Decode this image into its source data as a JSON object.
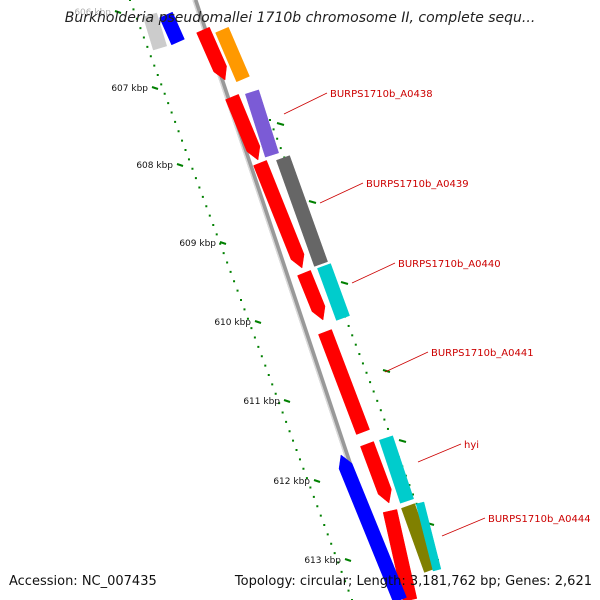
{
  "header": {
    "title": "Burkholderia pseudomallei 1710b chromosome II, complete sequ..."
  },
  "footer": {
    "accession": "Accession: NC_007435",
    "summary": "Topology: circular; Length: 3,181,762 bp; Genes: 2,621"
  },
  "map": {
    "tick_labels": [
      "606 kbp",
      "607 kbp",
      "608 kbp",
      "609 kbp",
      "610 kbp",
      "611 kbp",
      "612 kbp",
      "613 kbp"
    ],
    "gene_labels": [
      "BURPS1710b_A0438",
      "BURPS1710b_A0439",
      "BURPS1710b_A0440",
      "BURPS1710b_A0441",
      "hyi",
      "BURPS1710b_A0444"
    ],
    "colors": {
      "cds": "#ff0000",
      "reverse_cds": "#0000ff",
      "backbone": "#999999",
      "ticks": "#008000",
      "label_text": "#cc0000",
      "feature_orange": "#ff9900",
      "feature_purple": "#7b5bd6",
      "feature_gray": "#666666",
      "feature_cyan": "#00cccc",
      "feature_olive": "#808000",
      "feature_light_gray": "#cccccc"
    }
  }
}
